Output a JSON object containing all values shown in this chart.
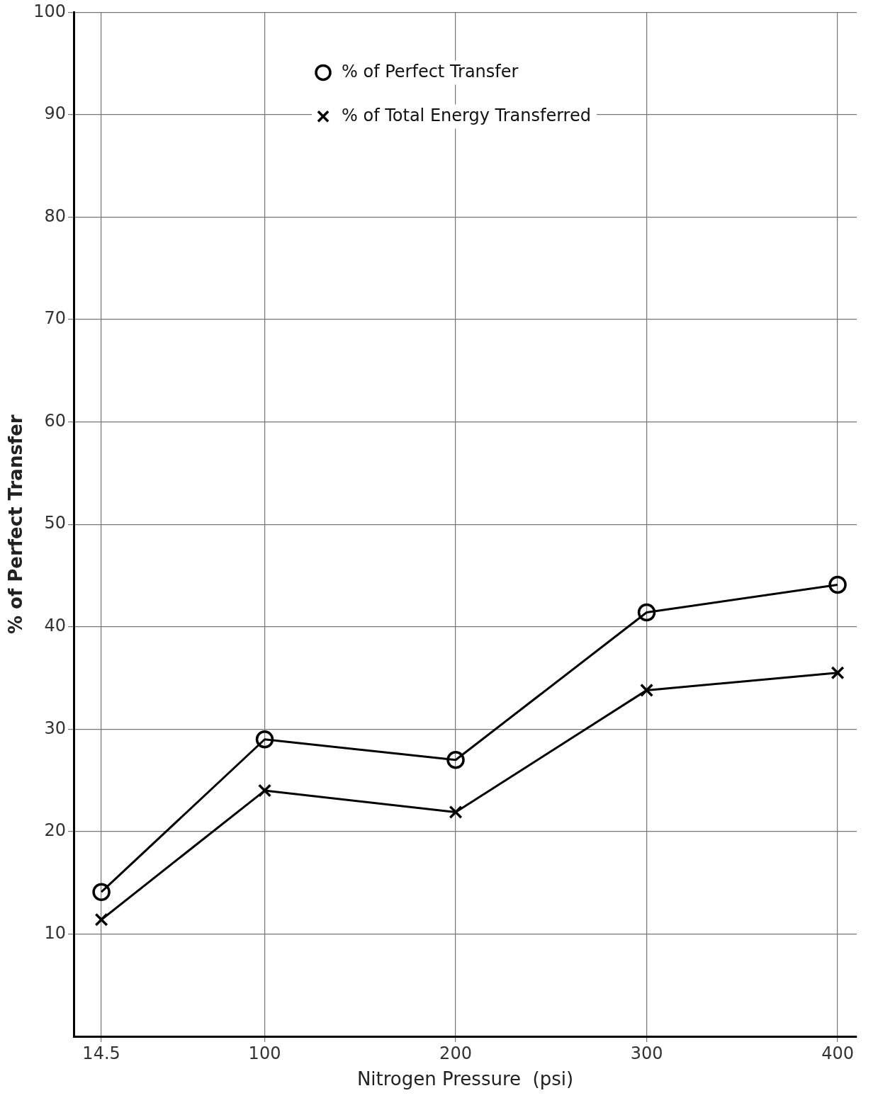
{
  "chart_data": {
    "type": "line",
    "xlabel": "Nitrogen Pressure  (psi)",
    "ylabel": "% of Perfect Transfer",
    "x": [
      14.5,
      100,
      200,
      300,
      400
    ],
    "series": [
      {
        "name": "% of Perfect Transfer",
        "color": "#000000",
        "marker": "circle",
        "values": [
          14.1,
          29.0,
          27.0,
          41.4,
          44.1
        ]
      },
      {
        "name": "% of Total Energy Transferred",
        "color": "#000000",
        "marker": "cross",
        "values": [
          11.4,
          24.0,
          21.9,
          33.8,
          35.5
        ]
      }
    ],
    "xlim": [
      0,
      410
    ],
    "xticks": [
      14.5,
      100,
      200,
      300,
      400
    ],
    "ylim": [
      0,
      100
    ],
    "yticks": [
      10,
      20,
      30,
      40,
      50,
      60,
      70,
      80,
      90,
      100
    ],
    "grid": true,
    "legend": "top left",
    "line_style": "solid"
  }
}
